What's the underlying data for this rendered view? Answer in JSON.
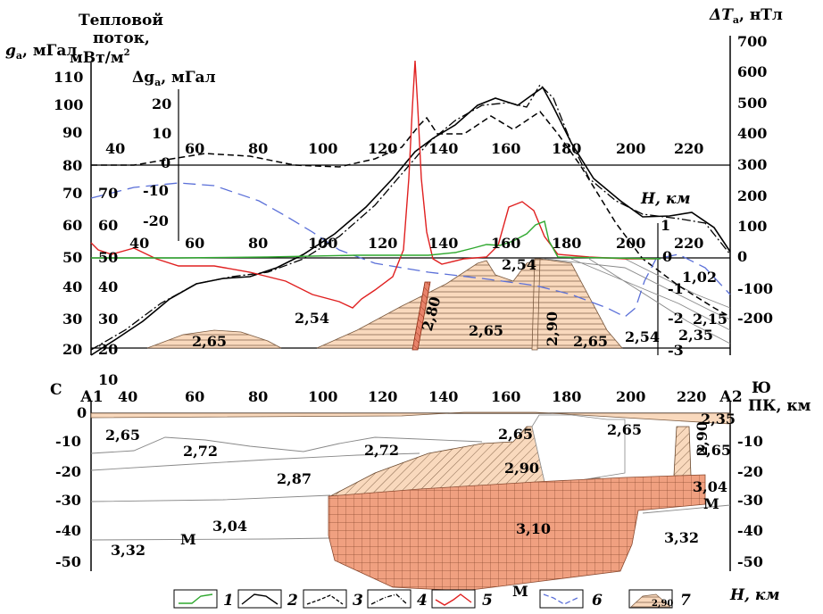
{
  "labels": {
    "ga_axis": "g",
    "ga_sub": "a",
    "ga_unit": ", мГал",
    "heat_l1": "Тепловой",
    "heat_l2": "поток,",
    "heat_l3": "мВт/м",
    "heat_sup": "2",
    "dga_pre": "Δg",
    "dga_sub": "a",
    "dga_unit": ", мГал",
    "dt_pre": "ΔT",
    "dt_sub": "a",
    "dt_unit": ", нТл",
    "h_top": "H, км",
    "north": "С",
    "south": "Ю",
    "a1": "А1",
    "a2": "А2",
    "pk": "ПК, км",
    "h_bottom": "H, км"
  },
  "ticks": {
    "ga": [
      "110",
      "100",
      "90",
      "80",
      "70",
      "60",
      "50",
      "40",
      "30",
      "20"
    ],
    "heat": [
      "70",
      "60",
      "50",
      "40",
      "30",
      "20",
      "10"
    ],
    "dga": [
      "20",
      "10",
      "0",
      "-10",
      "-20"
    ],
    "dt": [
      "700",
      "600",
      "500",
      "400",
      "300",
      "200",
      "100",
      "0",
      "-100",
      "-200"
    ],
    "h_top": [
      "1",
      "0",
      "-1",
      "-2",
      "-3"
    ],
    "x_top": [
      "40",
      "60",
      "80",
      "100",
      "120",
      "140",
      "160",
      "180",
      "200",
      "220"
    ],
    "x_mid": [
      "40",
      "60",
      "80",
      "100",
      "120",
      "140",
      "160",
      "180",
      "200",
      "220"
    ],
    "x_bottom": [
      "40",
      "60",
      "80",
      "100",
      "120",
      "140",
      "160",
      "180",
      "200",
      "220"
    ],
    "depth_left": [
      "0",
      "-10",
      "-20",
      "-30",
      "-40",
      "-50"
    ],
    "depth_right": [
      "-10",
      "-20",
      "-30",
      "-40",
      "-50"
    ]
  },
  "densities_top": [
    {
      "id": "d-265-a",
      "text": "2,65"
    },
    {
      "id": "d-254-a",
      "text": "2,54"
    },
    {
      "id": "d-280",
      "text": "2,80"
    },
    {
      "id": "d-254-b",
      "text": "2,54"
    },
    {
      "id": "d-265-b",
      "text": "2,65"
    },
    {
      "id": "d-290-a",
      "text": "2,90"
    },
    {
      "id": "d-265-c",
      "text": "2,65"
    },
    {
      "id": "d-254-c",
      "text": "2,54"
    },
    {
      "id": "d-102",
      "text": "1,02"
    },
    {
      "id": "d-215",
      "text": "2,15"
    },
    {
      "id": "d-235-a",
      "text": "2,35"
    }
  ],
  "densities_bottom": [
    {
      "id": "b-265-a",
      "text": "2,65"
    },
    {
      "id": "b-272-a",
      "text": "2,72"
    },
    {
      "id": "b-272-b",
      "text": "2,72"
    },
    {
      "id": "b-265-b",
      "text": "2,65"
    },
    {
      "id": "b-265-c",
      "text": "2,65"
    },
    {
      "id": "b-235",
      "text": "2,35"
    },
    {
      "id": "b-290-a",
      "text": "2,90"
    },
    {
      "id": "b-265-d",
      "text": "2,65"
    },
    {
      "id": "b-287",
      "text": "2,87"
    },
    {
      "id": "b-290-b",
      "text": "2,90"
    },
    {
      "id": "b-304-a",
      "text": "3,04"
    },
    {
      "id": "b-304-b",
      "text": "3,04"
    },
    {
      "id": "b-310",
      "text": "3,10"
    },
    {
      "id": "b-332-a",
      "text": "3,32"
    },
    {
      "id": "b-332-b",
      "text": "3,32"
    },
    {
      "id": "m-1",
      "text": "М"
    },
    {
      "id": "m-2",
      "text": "М"
    },
    {
      "id": "m-3",
      "text": "М"
    }
  ],
  "legend": [
    {
      "num": "1",
      "color": "#2fa82f",
      "style": "solid"
    },
    {
      "num": "2",
      "color": "#000000",
      "style": "solid"
    },
    {
      "num": "3",
      "color": "#000000",
      "style": "dashed"
    },
    {
      "num": "4",
      "color": "#000000",
      "style": "dashdot"
    },
    {
      "num": "5",
      "color": "#e02020",
      "style": "solid"
    },
    {
      "num": "6",
      "color": "#5a6fd8",
      "style": "longdash"
    },
    {
      "num": "7",
      "color": "#f5c8a0",
      "style": "hatched",
      "inner": "2,90"
    }
  ],
  "colors": {
    "sediment": "#f9d9bd",
    "basalt": "#f0a080",
    "green": "#2fa82f",
    "red": "#e02020",
    "blue": "#5a6fd8"
  }
}
